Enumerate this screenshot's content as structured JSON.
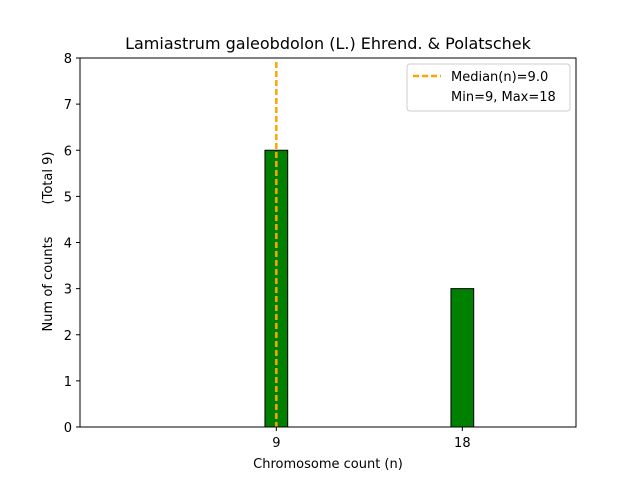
{
  "chart_data": {
    "type": "bar",
    "title": "Lamiastrum galeobdolon (L.) Ehrend. & Polatschek",
    "xlabel": "Chromosome count (n)",
    "ylabel": "Num of counts",
    "ylabel_extra": "(Total 9)",
    "categories": [
      9,
      18
    ],
    "values": [
      6,
      3
    ],
    "xlim": [
      -0.5,
      23.5
    ],
    "ylim": [
      0,
      8
    ],
    "xticks": [
      9,
      18
    ],
    "yticks": [
      0,
      1,
      2,
      3,
      4,
      5,
      6,
      7,
      8
    ],
    "bar_width": 1.1,
    "median": 9.0,
    "legend": {
      "placement": "top-right",
      "entries": [
        "Median(n)=9.0",
        "Min=9, Max=18"
      ]
    },
    "grid": false,
    "colors": {
      "bar_fill": "#008000",
      "bar_edge": "#000000",
      "median_line": "#FFA500"
    }
  }
}
